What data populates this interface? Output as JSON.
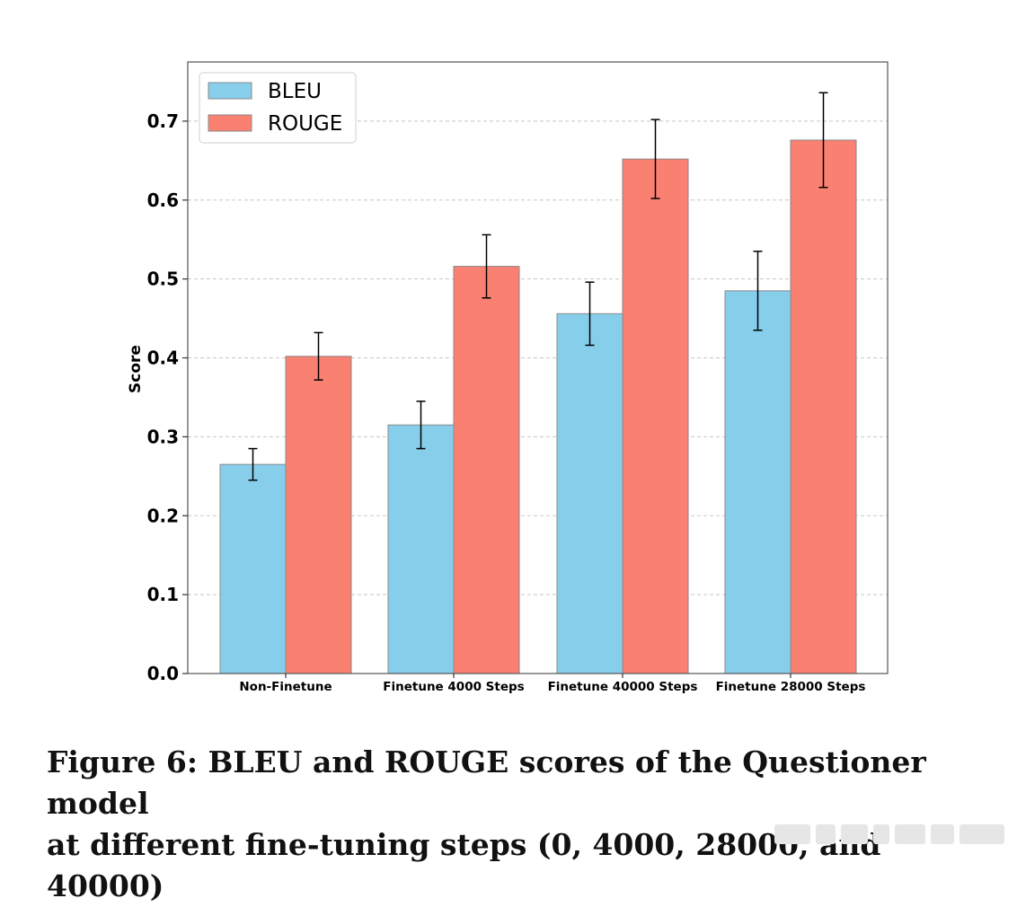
{
  "chart_data": {
    "type": "bar",
    "title": "",
    "xlabel": "",
    "ylabel": "Score",
    "ylim": [
      0,
      0.775
    ],
    "yticks": [
      "0.0",
      "0.1",
      "0.2",
      "0.3",
      "0.4",
      "0.5",
      "0.6",
      "0.7"
    ],
    "grid": true,
    "legend_position": "top-left",
    "categories": [
      "Non-Finetune",
      "Finetune 4000 Steps",
      "Finetune 40000 Steps",
      "Finetune 28000 Steps"
    ],
    "series": [
      {
        "name": "BLEU",
        "color": "#87CEEB",
        "values": [
          0.265,
          0.315,
          0.456,
          0.485
        ],
        "errors": [
          0.02,
          0.03,
          0.04,
          0.05
        ]
      },
      {
        "name": "ROUGE",
        "color": "#FA8072",
        "values": [
          0.402,
          0.516,
          0.652,
          0.676
        ],
        "errors": [
          0.03,
          0.04,
          0.05,
          0.06
        ]
      }
    ]
  },
  "caption": {
    "line1": "Figure 6: BLEU and ROUGE scores of the Questioner model",
    "line2": "at different fine-tuning steps (0, 4000, 28000, and 40000)"
  }
}
